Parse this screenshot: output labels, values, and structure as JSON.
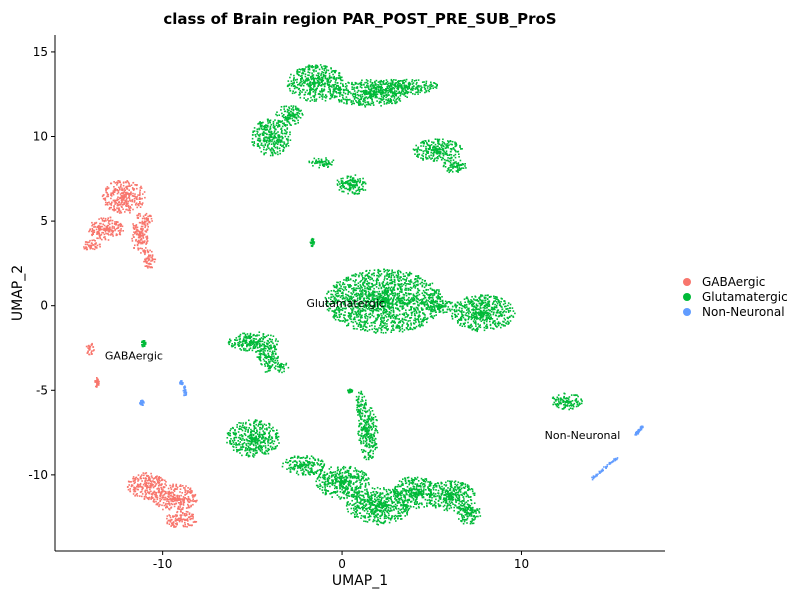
{
  "chart_data": {
    "type": "scatter",
    "title": "class of Brain region PAR_POST_PRE_SUB_ProS",
    "xlabel": "UMAP_1",
    "ylabel": "UMAP_2",
    "xlim": [
      -16,
      18
    ],
    "ylim": [
      -14.5,
      16
    ],
    "xticks": [
      -10,
      0,
      10
    ],
    "yticks": [
      -10,
      -5,
      0,
      5,
      10,
      15
    ],
    "grid": false,
    "legend_position": "right",
    "series": [
      {
        "name": "GABAergic",
        "color": "#F8766D",
        "blobs": [
          {
            "cx": -12.2,
            "cy": 6.5,
            "rx": 1.2,
            "ry": 1.0
          },
          {
            "cx": -13.2,
            "cy": 4.6,
            "rx": 1.0,
            "ry": 0.7
          },
          {
            "cx": -14.0,
            "cy": 3.6,
            "rx": 0.5,
            "ry": 0.35
          },
          {
            "cx": -11.3,
            "cy": 4.3,
            "rx": 0.5,
            "ry": 1.2
          },
          {
            "cx": -10.8,
            "cy": 2.8,
            "rx": 0.4,
            "ry": 0.6
          },
          {
            "cx": -10.9,
            "cy": 5.1,
            "rx": 0.3,
            "ry": 0.4
          },
          {
            "cx": -14.1,
            "cy": -2.5,
            "rx": 0.25,
            "ry": 0.35
          },
          {
            "cx": -13.7,
            "cy": -4.5,
            "rx": 0.12,
            "ry": 0.3
          },
          {
            "cx": -10.9,
            "cy": -10.6,
            "rx": 1.1,
            "ry": 0.8
          },
          {
            "cx": -9.4,
            "cy": -11.3,
            "rx": 1.3,
            "ry": 0.8
          },
          {
            "cx": -9.0,
            "cy": -12.6,
            "rx": 0.9,
            "ry": 0.5
          }
        ]
      },
      {
        "name": "Glutamatergic",
        "color": "#00BA38",
        "blobs": [
          {
            "cx": -1.5,
            "cy": 13.2,
            "rx": 1.6,
            "ry": 1.1
          },
          {
            "cx": 1.5,
            "cy": 12.6,
            "rx": 2.2,
            "ry": 0.8
          },
          {
            "cx": 3.5,
            "cy": 13.0,
            "rx": 1.8,
            "ry": 0.5
          },
          {
            "cx": -4.0,
            "cy": 10.0,
            "rx": 1.1,
            "ry": 1.1
          },
          {
            "cx": -3.0,
            "cy": 11.3,
            "rx": 0.8,
            "ry": 0.6
          },
          {
            "cx": 5.3,
            "cy": 9.2,
            "rx": 1.4,
            "ry": 0.7
          },
          {
            "cx": 6.2,
            "cy": 8.3,
            "rx": 0.7,
            "ry": 0.4
          },
          {
            "cx": 0.5,
            "cy": 7.2,
            "rx": 0.9,
            "ry": 0.6
          },
          {
            "cx": -1.2,
            "cy": 8.5,
            "rx": 0.8,
            "ry": 0.3
          },
          {
            "cx": -1.7,
            "cy": 3.8,
            "rx": 0.12,
            "ry": 0.25
          },
          {
            "cx": 2.3,
            "cy": 0.3,
            "rx": 3.3,
            "ry": 1.9
          },
          {
            "cx": 7.8,
            "cy": -0.4,
            "rx": 1.8,
            "ry": 1.1
          },
          {
            "cx": 5.5,
            "cy": 0.0,
            "rx": 0.8,
            "ry": 0.4
          },
          {
            "cx": -5.0,
            "cy": -2.1,
            "rx": 1.4,
            "ry": 0.6
          },
          {
            "cx": -4.2,
            "cy": -3.0,
            "rx": 0.6,
            "ry": 0.9
          },
          {
            "cx": -3.4,
            "cy": -3.6,
            "rx": 0.4,
            "ry": 0.3
          },
          {
            "cx": -11.1,
            "cy": -2.2,
            "rx": 0.12,
            "ry": 0.2
          },
          {
            "cx": 12.5,
            "cy": -5.6,
            "rx": 0.9,
            "ry": 0.5
          },
          {
            "cx": -5.0,
            "cy": -7.8,
            "rx": 1.5,
            "ry": 1.1
          },
          {
            "cx": -2.2,
            "cy": -9.4,
            "rx": 1.2,
            "ry": 0.6
          },
          {
            "cx": 0.0,
            "cy": -10.4,
            "rx": 1.5,
            "ry": 1.0
          },
          {
            "cx": 2.0,
            "cy": -11.8,
            "rx": 1.8,
            "ry": 1.1
          },
          {
            "cx": 4.0,
            "cy": -11.0,
            "rx": 1.2,
            "ry": 1.0
          },
          {
            "cx": 6.0,
            "cy": -11.2,
            "rx": 1.4,
            "ry": 0.9
          },
          {
            "cx": 7.0,
            "cy": -12.2,
            "rx": 0.7,
            "ry": 0.7
          },
          {
            "cx": 1.4,
            "cy": -7.5,
            "rx": 0.6,
            "ry": 1.6
          },
          {
            "cx": 1.0,
            "cy": -5.8,
            "rx": 0.3,
            "ry": 0.8
          },
          {
            "cx": 0.4,
            "cy": -5.0,
            "rx": 0.15,
            "ry": 0.12
          }
        ]
      },
      {
        "name": "Non-Neuronal",
        "color": "#619CFF",
        "blobs": [
          {
            "cx": -11.2,
            "cy": -5.7,
            "rx": 0.12,
            "ry": 0.15
          },
          {
            "cx": -8.8,
            "cy": -5.0,
            "rx": 0.1,
            "ry": 0.3
          },
          {
            "cx": -9.0,
            "cy": -4.5,
            "rx": 0.1,
            "ry": 0.12
          }
        ],
        "streaks": [
          {
            "x1": 13.9,
            "y1": -10.2,
            "x2": 15.3,
            "y2": -8.9
          },
          {
            "x1": 16.3,
            "y1": -7.6,
            "x2": 16.7,
            "y2": -7.1
          }
        ]
      }
    ],
    "annotations": [
      {
        "text": "Glutamatergic",
        "x": 0.2,
        "y": 0.1
      },
      {
        "text": "GABAergic",
        "x": -11.6,
        "y": -3.0
      },
      {
        "text": "Non-Neuronal",
        "x": 13.4,
        "y": -7.7
      }
    ]
  }
}
